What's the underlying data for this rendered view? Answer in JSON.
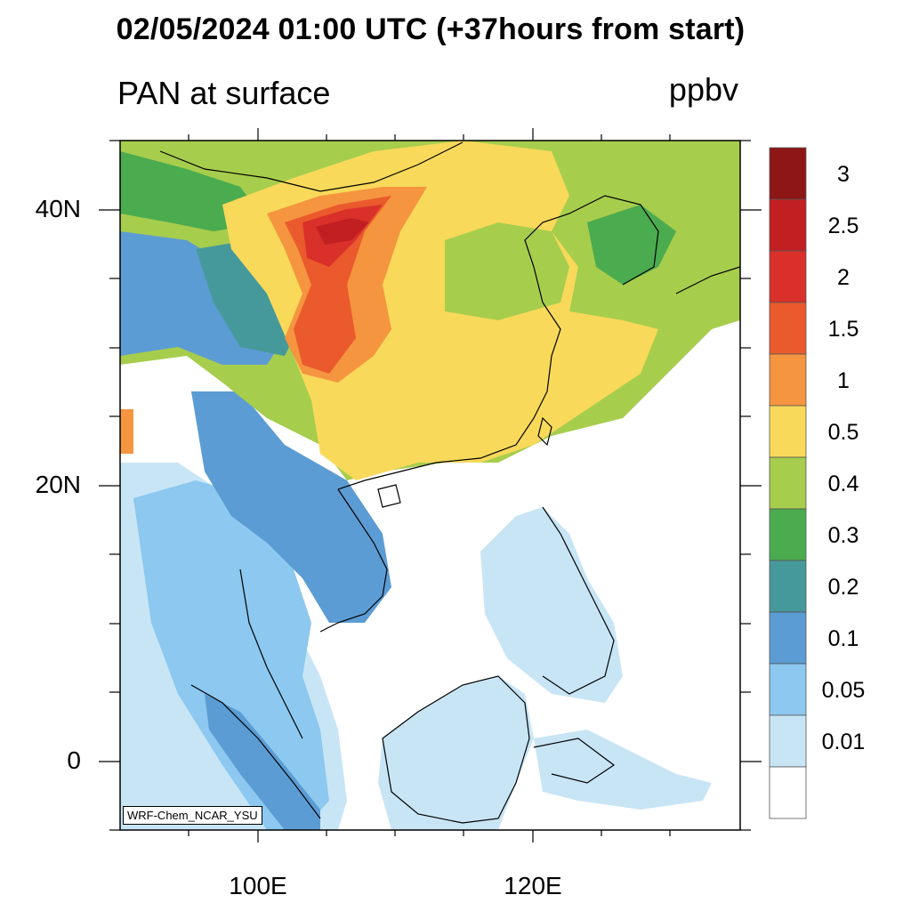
{
  "title": "02/05/2024 01:00 UTC (+37hours from start)",
  "variable": "PAN at surface",
  "units": "ppbv",
  "credit": "WRF-Chem_NCAR_YSU",
  "lat_labels": [
    {
      "text": "40N",
      "lat": 40
    },
    {
      "text": "20N",
      "lat": 20
    },
    {
      "text": "0",
      "lat": 0
    }
  ],
  "lon_labels": [
    {
      "text": "100E",
      "lon": 100
    },
    {
      "text": "120E",
      "lon": 120
    }
  ],
  "colorbar": {
    "labels": [
      "3",
      "2.5",
      "2",
      "1.5",
      "1",
      "0.5",
      "0.4",
      "0.3",
      "0.2",
      "0.1",
      "0.05",
      "0.01"
    ],
    "colors": [
      "#8e1616",
      "#c11f22",
      "#d9302a",
      "#ea5a2c",
      "#f5953f",
      "#f8d95a",
      "#a7cd4d",
      "#4bab4f",
      "#46999a",
      "#5c9cd4",
      "#8cc8ef",
      "#c8e5f6",
      "#ffffff"
    ]
  }
}
